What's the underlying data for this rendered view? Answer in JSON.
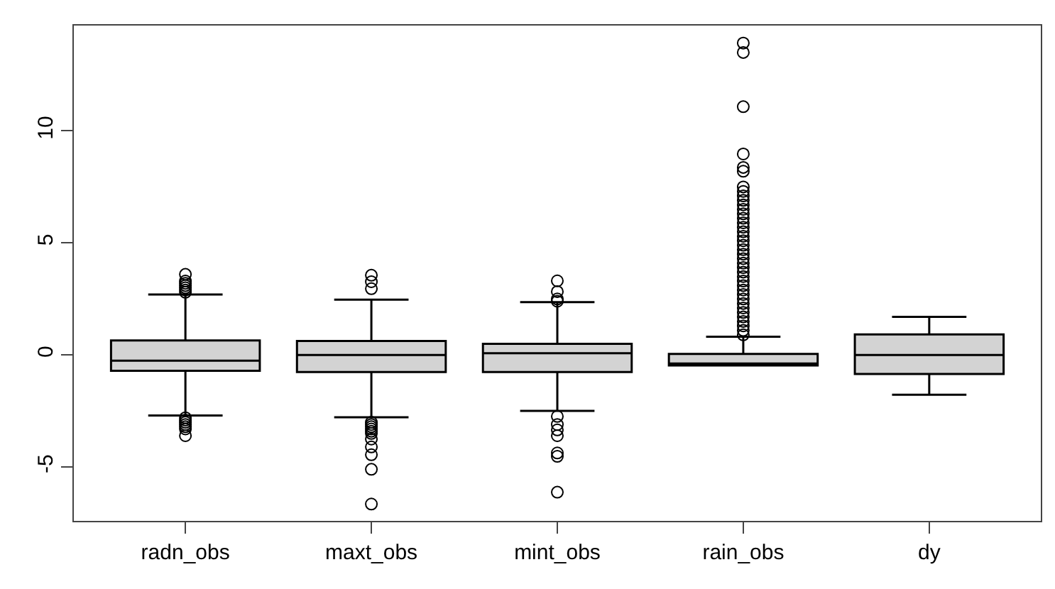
{
  "chart_data": {
    "type": "box",
    "categories": [
      "radn_obs",
      "maxt_obs",
      "mint_obs",
      "rain_obs",
      "dy"
    ],
    "boxes": [
      {
        "low": -2.7,
        "q1": -0.7,
        "median": -0.25,
        "q3": 0.65,
        "high": 2.7,
        "outliers": [
          2.8,
          2.9,
          3.0,
          3.1,
          3.2,
          3.3,
          3.6,
          -2.8,
          -2.9,
          -3.0,
          -3.1,
          -3.2,
          -3.3,
          -3.6
        ]
      },
      {
        "low": -2.78,
        "q1": -0.76,
        "median": 0.0,
        "q3": 0.63,
        "high": 2.47,
        "outliers": [
          3.56,
          3.27,
          2.96,
          -3.0,
          -3.1,
          -3.2,
          -3.3,
          -3.4,
          -3.5,
          -3.75,
          -4.1,
          -4.45,
          -5.1,
          -6.65
        ]
      },
      {
        "low": -2.49,
        "q1": -0.76,
        "median": 0.08,
        "q3": 0.5,
        "high": 2.36,
        "outliers": [
          3.31,
          2.83,
          2.5,
          2.4,
          -2.74,
          -3.1,
          -3.34,
          -3.6,
          -4.37,
          -4.52,
          -6.12
        ]
      },
      {
        "low": -0.47,
        "q1": -0.47,
        "median": -0.38,
        "q3": 0.05,
        "high": 0.82,
        "outliers": [
          0.9,
          1.1,
          1.3,
          1.5,
          1.7,
          1.9,
          2.1,
          2.3,
          2.5,
          2.7,
          2.9,
          3.1,
          3.3,
          3.5,
          3.7,
          3.9,
          4.1,
          4.3,
          4.5,
          4.7,
          4.9,
          5.1,
          5.3,
          5.5,
          5.7,
          5.9,
          6.1,
          6.3,
          6.5,
          6.7,
          6.9,
          7.1,
          7.3,
          7.5,
          8.2,
          8.37,
          8.97,
          11.08,
          13.5,
          13.92
        ]
      },
      {
        "low": -1.77,
        "q1": -0.85,
        "median": 0.0,
        "q3": 0.92,
        "high": 1.7
      }
    ],
    "color": "#d3d3d3",
    "ylim": [
      -7.4,
      14.7
    ],
    "yticks": [
      -5,
      0,
      5,
      10
    ],
    "marker": "circle"
  }
}
